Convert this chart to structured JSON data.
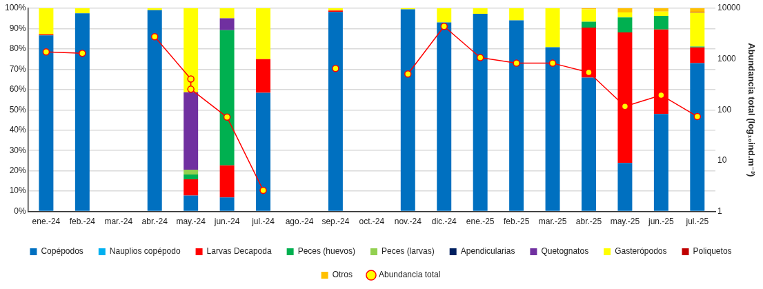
{
  "chart_data": {
    "type": "bar",
    "stacked": true,
    "y2label": "Abundancia total (log₁₀ind.m⁻³)",
    "categories": [
      "ene.-24",
      "feb.-24",
      "mar.-24",
      "abr.-24",
      "may.-24",
      "jun.-24",
      "jul.-24",
      "ago.-24",
      "sep.-24",
      "oct.-24",
      "nov.-24",
      "dic.-24",
      "ene.-25",
      "feb.-25",
      "mar.-25",
      "abr.-25",
      "may.-25",
      "jun.-25",
      "jul.-25"
    ],
    "series": [
      {
        "name": "Copépodos",
        "color": "#0070c0",
        "values": [
          86.7,
          97.5,
          null,
          99.1,
          7.8,
          6.9,
          58.4,
          null,
          98.2,
          null,
          99.5,
          93.0,
          97.3,
          94.1,
          80.8,
          65.9,
          23.9,
          48.0,
          73.0
        ]
      },
      {
        "name": "Nauplios copépodo",
        "color": "#00b0f0",
        "values": [
          0,
          0,
          null,
          0,
          0,
          0,
          0,
          null,
          0,
          null,
          0,
          0,
          0,
          0,
          0,
          0,
          0,
          0,
          0
        ]
      },
      {
        "name": "Larvas Decapoda",
        "color": "#ff0000",
        "values": [
          0.5,
          0,
          null,
          0,
          8.0,
          15.8,
          16.6,
          null,
          0.7,
          null,
          0,
          0,
          0,
          0,
          0,
          24.6,
          64.2,
          41.6,
          7.7
        ]
      },
      {
        "name": "Peces (huevos)",
        "color": "#00b050",
        "values": [
          0,
          0,
          null,
          0,
          2.4,
          66.5,
          0,
          null,
          0,
          null,
          0,
          0,
          0,
          0,
          0,
          2.9,
          7.4,
          6.7,
          0.5
        ]
      },
      {
        "name": "Peces (larvas)",
        "color": "#92d050",
        "values": [
          0,
          0,
          null,
          0,
          2.4,
          0,
          0,
          null,
          0,
          null,
          0,
          0,
          0,
          0,
          0,
          0,
          0,
          0,
          0
        ]
      },
      {
        "name": "Apendicularias",
        "color": "#002060",
        "values": [
          0,
          0,
          null,
          0,
          0,
          0,
          0,
          null,
          0,
          null,
          0,
          0,
          0,
          0,
          0,
          0,
          0,
          0,
          0
        ]
      },
      {
        "name": "Quetognatos",
        "color": "#7030a0",
        "values": [
          0,
          0,
          null,
          0,
          38.1,
          5.9,
          0,
          null,
          0,
          null,
          0,
          0,
          0,
          0,
          0,
          0,
          0,
          0,
          0
        ]
      },
      {
        "name": "Gasterópodos",
        "color": "#ffff00",
        "values": [
          12.8,
          2.5,
          null,
          0.9,
          41.3,
          4.9,
          25.0,
          null,
          1.1,
          null,
          0.5,
          7.0,
          2.7,
          5.9,
          19.2,
          6.1,
          2.5,
          2.1,
          16.7
        ]
      },
      {
        "name": "Poliquetos",
        "color": "#c00000",
        "values": [
          0,
          0,
          null,
          0,
          0,
          0,
          0,
          null,
          0,
          null,
          0,
          0,
          0,
          0,
          0,
          0,
          0,
          0,
          0.3
        ]
      },
      {
        "name": "Otros",
        "color": "#ffc000",
        "values": [
          0,
          0,
          null,
          0,
          0,
          0,
          0,
          null,
          0,
          null,
          0,
          0,
          0,
          0,
          0,
          0.5,
          2.0,
          1.6,
          1.8
        ]
      },
      {
        "name": "Abundancia total",
        "type": "line",
        "axis": "y2",
        "color": "#ff0000",
        "marker": "circle",
        "x": [
          "ene.-24",
          "feb.-24",
          "mar.-24",
          "abr.-24",
          "may.-24",
          "may.-24",
          "jun.-24",
          "jul.-24",
          "ago.-24",
          "sep.-24",
          "oct.-24",
          "nov.-24",
          "dic.-24",
          "ene.-25",
          "feb.-25",
          "mar.-25",
          "abr.-25",
          "may.-25",
          "jun.-25",
          "jul.-25"
        ],
        "values": [
          1380,
          1300,
          null,
          2750,
          405,
          255,
          72,
          2.6,
          null,
          655,
          null,
          510,
          4400,
          1070,
          830,
          830,
          545,
          117,
          195,
          74
        ]
      }
    ],
    "ylim": [
      0,
      100
    ],
    "yticks": [
      {
        "value": 0,
        "label": "0%"
      },
      {
        "value": 10,
        "label": "10%"
      },
      {
        "value": 20,
        "label": "20%"
      },
      {
        "value": 30,
        "label": "30%"
      },
      {
        "value": 40,
        "label": "40%"
      },
      {
        "value": 50,
        "label": "50%"
      },
      {
        "value": 60,
        "label": "60%"
      },
      {
        "value": 70,
        "label": "70%"
      },
      {
        "value": 80,
        "label": "80%"
      },
      {
        "value": 90,
        "label": "90%"
      },
      {
        "value": 100,
        "label": "100%"
      }
    ],
    "y2lim": [
      1,
      10000
    ],
    "y2ticks": [
      1,
      10,
      100,
      1000,
      10000
    ],
    "log": "y2",
    "grid": "y",
    "legend": "bottom"
  }
}
